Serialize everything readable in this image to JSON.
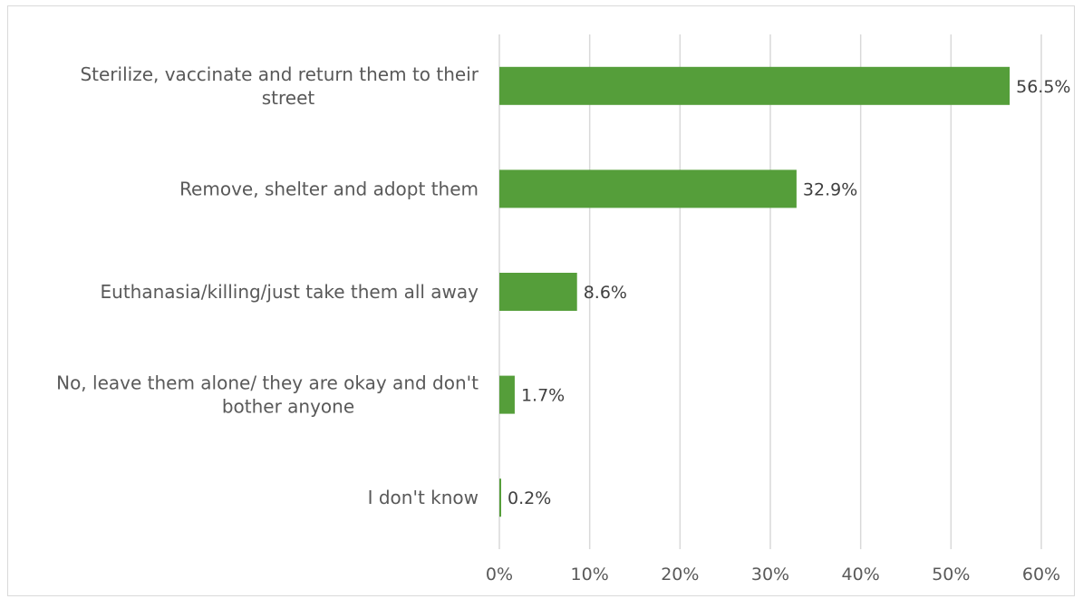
{
  "chart_data": {
    "type": "bar",
    "orientation": "horizontal",
    "categories": [
      "Sterilize, vaccinate and return them to their street",
      "Remove, shelter and adopt them",
      "Euthanasia/killing/just take them all away",
      "No, leave them alone/ they are okay and don't bother anyone",
      "I don't know"
    ],
    "category_lines": [
      [
        "Sterilize, vaccinate and return them to their",
        "street"
      ],
      [
        "Remove, shelter and adopt them"
      ],
      [
        "Euthanasia/killing/just take them all away"
      ],
      [
        "No, leave them alone/ they are okay and don't",
        "bother anyone"
      ],
      [
        "I don't know"
      ]
    ],
    "values": [
      56.5,
      32.9,
      8.6,
      1.7,
      0.2
    ],
    "data_labels": [
      "56.5%",
      "32.9%",
      "8.6%",
      "1.7%",
      "0.2%"
    ],
    "x_ticks": [
      0,
      10,
      20,
      30,
      40,
      50,
      60
    ],
    "x_tick_labels": [
      "0%",
      "10%",
      "20%",
      "30%",
      "40%",
      "50%",
      "60%"
    ],
    "xlim": [
      0,
      60
    ],
    "title": "",
    "xlabel": "",
    "ylabel": "",
    "grid": "vertical",
    "legend": "none",
    "bar_color": "#559e3a",
    "grid_color": "#d9d9d9"
  }
}
